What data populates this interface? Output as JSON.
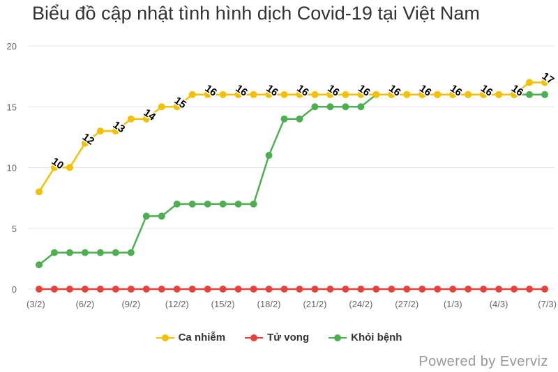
{
  "chart_data": {
    "type": "line",
    "title": "Biểu đồ cập nhật tình hình dịch Covid-19 tại Việt Nam",
    "xlabel": "",
    "ylabel": "",
    "categories": [
      "(3/2)",
      "(4/2)",
      "(5/2)",
      "(6/2)",
      "(7/2)",
      "(8/2)",
      "(9/2)",
      "(10/2)",
      "(11/2)",
      "(12/2)",
      "(13/2)",
      "(14/2)",
      "(15/2)",
      "(16/2)",
      "(17/2)",
      "(18/2)",
      "(19/2)",
      "(20/2)",
      "(21/2)",
      "(22/2)",
      "(23/2)",
      "(24/2)",
      "(25/2)",
      "(26/2)",
      "(27/2)",
      "(28/2)",
      "(29/2)",
      "(1/3)",
      "(2/3)",
      "(3/3)",
      "(4/3)",
      "(5/3)",
      "(6/3)",
      "(7/3)"
    ],
    "visible_tick_labels": [
      "(3/2)",
      "(6/2)",
      "(9/2)",
      "(12/2)",
      "(15/2)",
      "(18/2)",
      "(21/2)",
      "(24/2)",
      "(27/2)",
      "(1/3)",
      "(4/3)",
      "(7/3)"
    ],
    "ylim": [
      0,
      20
    ],
    "yticks": [
      0,
      5,
      10,
      15,
      20
    ],
    "grid": true,
    "legend_position": "bottom-center",
    "series": [
      {
        "name": "Ca nhiễm",
        "color": "#f5c000",
        "values": [
          8,
          10,
          10,
          12,
          13,
          13,
          14,
          14,
          15,
          15,
          16,
          16,
          16,
          16,
          16,
          16,
          16,
          16,
          16,
          16,
          16,
          16,
          16,
          16,
          16,
          16,
          16,
          16,
          16,
          16,
          16,
          16,
          17,
          17
        ],
        "data_labels": [
          {
            "index": 1,
            "text": "10"
          },
          {
            "index": 3,
            "text": "12"
          },
          {
            "index": 5,
            "text": "13"
          },
          {
            "index": 7,
            "text": "14"
          },
          {
            "index": 9,
            "text": "15"
          },
          {
            "index": 11,
            "text": "16"
          },
          {
            "index": 13,
            "text": "16"
          },
          {
            "index": 15,
            "text": "16"
          },
          {
            "index": 17,
            "text": "16"
          },
          {
            "index": 19,
            "text": "16"
          },
          {
            "index": 21,
            "text": "16"
          },
          {
            "index": 23,
            "text": "16"
          },
          {
            "index": 25,
            "text": "16"
          },
          {
            "index": 27,
            "text": "16"
          },
          {
            "index": 29,
            "text": "16"
          },
          {
            "index": 31,
            "text": "16"
          },
          {
            "index": 33,
            "text": "17"
          }
        ]
      },
      {
        "name": "Tử vong",
        "color": "#e8413a",
        "values": [
          0,
          0,
          0,
          0,
          0,
          0,
          0,
          0,
          0,
          0,
          0,
          0,
          0,
          0,
          0,
          0,
          0,
          0,
          0,
          0,
          0,
          0,
          0,
          0,
          0,
          0,
          0,
          0,
          0,
          0,
          0,
          0,
          0,
          0
        ],
        "data_labels": []
      },
      {
        "name": "Khỏi bệnh",
        "color": "#4caf50",
        "values": [
          2,
          3,
          3,
          3,
          3,
          3,
          3,
          6,
          6,
          7,
          7,
          7,
          7,
          7,
          7,
          11,
          14,
          14,
          15,
          15,
          15,
          15,
          16,
          16,
          16,
          16,
          16,
          16,
          16,
          16,
          16,
          16,
          16,
          16
        ],
        "data_labels": []
      }
    ]
  },
  "credit": "Powered by Everviz"
}
